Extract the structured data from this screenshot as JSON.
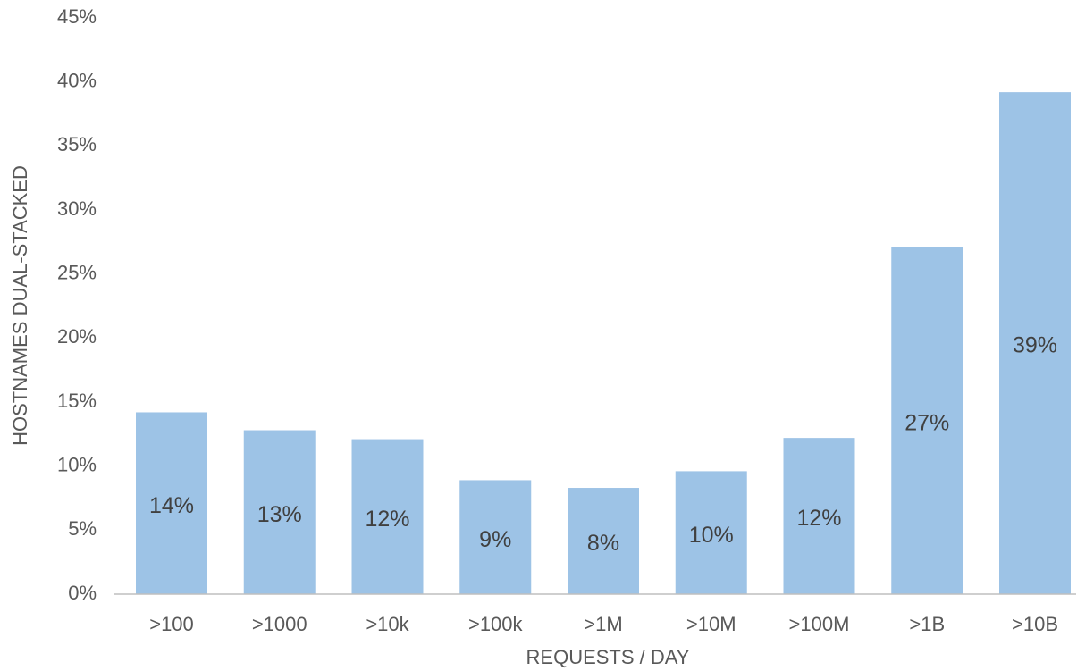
{
  "chart_data": {
    "type": "bar",
    "x_label": "REQUESTS / DAY",
    "y_label": "HOSTNAMES DUAL-STACKED",
    "categories": [
      ">100",
      ">1000",
      ">10k",
      ">100k",
      ">1M",
      ">10M",
      ">100M",
      ">1B",
      ">10B"
    ],
    "values": [
      14.2,
      12.8,
      12.1,
      8.9,
      8.3,
      9.6,
      12.2,
      27.1,
      39.2
    ],
    "value_labels": [
      "14%",
      "13%",
      "12%",
      "9%",
      "8%",
      "10%",
      "12%",
      "27%",
      "39%"
    ],
    "color": "#9dc3e6",
    "ylim": [
      0,
      45
    ],
    "yticks": [
      {
        "value": 0,
        "label": "0%"
      },
      {
        "value": 5,
        "label": "5%"
      },
      {
        "value": 10,
        "label": "10%"
      },
      {
        "value": 15,
        "label": "15%"
      },
      {
        "value": 20,
        "label": "20%"
      },
      {
        "value": 25,
        "label": "25%"
      },
      {
        "value": 30,
        "label": "30%"
      },
      {
        "value": 35,
        "label": "35%"
      },
      {
        "value": 40,
        "label": "40%"
      },
      {
        "value": 45,
        "label": "45%"
      }
    ],
    "grid": false
  }
}
